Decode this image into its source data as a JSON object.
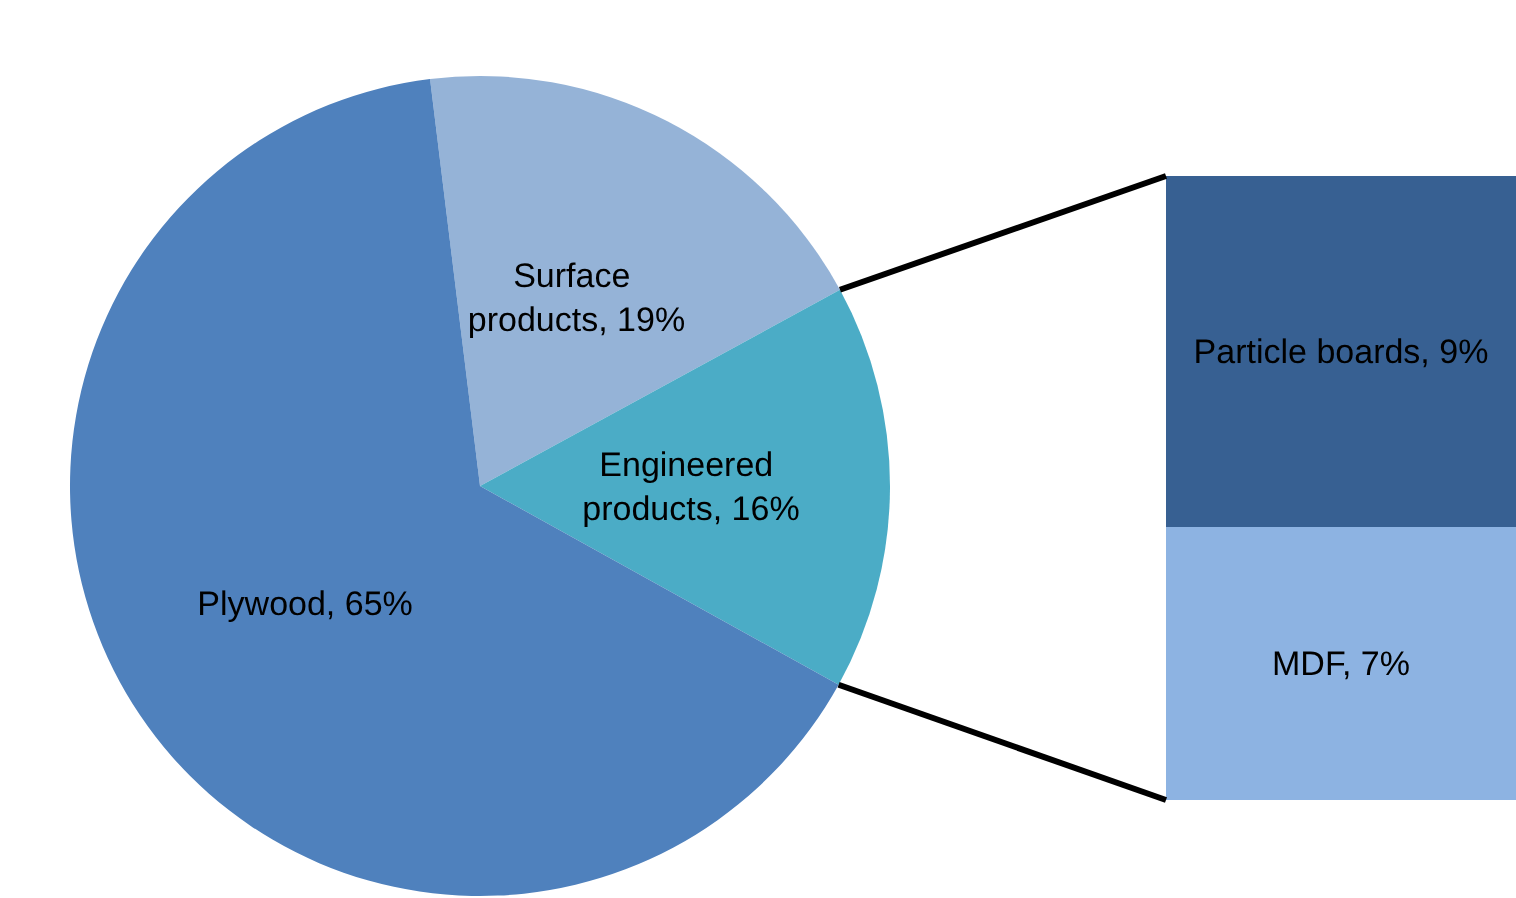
{
  "chart_data": [
    {
      "type": "pie",
      "categories": [
        "Surface products",
        "Engineered products",
        "Plywood"
      ],
      "values": [
        19,
        16,
        65
      ],
      "colors": [
        "#95b3d7",
        "#4bacc6",
        "#4f81bd"
      ],
      "value_labels": [
        "19%",
        "16%",
        "65%"
      ]
    },
    {
      "type": "bar",
      "stacked": true,
      "categories": [
        null
      ],
      "series": [
        {
          "color": "#8db3e2",
          "values": [
            7
          ],
          "value_labels": [
            "MDF, 7%"
          ]
        },
        {
          "color": "#376092",
          "values": [
            9
          ],
          "value_labels": [
            "Particle boards, 9%"
          ]
        }
      ]
    }
  ]
}
